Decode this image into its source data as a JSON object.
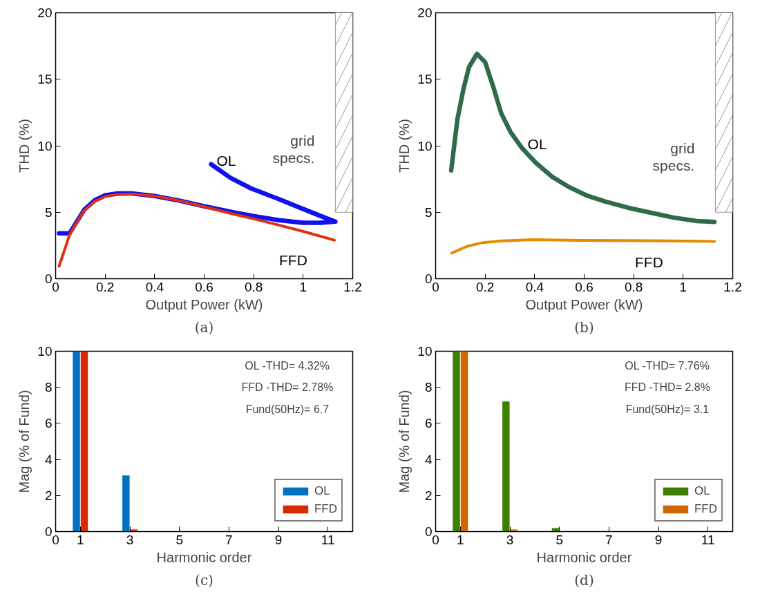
{
  "chart_data": [
    {
      "type": "line",
      "title": "(a)",
      "xlabel": "Output Power (kW)",
      "ylabel": "THD (%)",
      "xlim": [
        0,
        1.2
      ],
      "ylim": [
        0,
        20
      ],
      "xticks": [
        0,
        0.2,
        0.4,
        0.6,
        0.8,
        1,
        1.2
      ],
      "yticks": [
        0,
        5,
        10,
        15,
        20
      ],
      "series": [
        {
          "name": "OL",
          "color": "#1010f0",
          "x": [
            0.014,
            0.056,
            0.116,
            0.158,
            0.2,
            0.251,
            0.307,
            0.4,
            0.493,
            0.605,
            0.716,
            0.81,
            0.902,
            1.0,
            1.07,
            1.13,
            1.088,
            0.995,
            0.902,
            0.791,
            0.707,
            0.628
          ],
          "values": [
            3.41,
            3.41,
            5.2,
            5.9,
            6.27,
            6.42,
            6.42,
            6.22,
            5.9,
            5.43,
            5.0,
            4.68,
            4.4,
            4.21,
            4.21,
            4.3,
            4.59,
            5.28,
            5.99,
            6.78,
            7.58,
            8.61
          ]
        },
        {
          "name": "FFD",
          "color": "#e03010",
          "x": [
            0.014,
            0.056,
            0.112,
            0.158,
            0.2,
            0.251,
            0.307,
            0.4,
            0.493,
            0.605,
            0.716,
            0.81,
            0.902,
            1.0,
            1.126
          ],
          "values": [
            0.94,
            3.28,
            5.06,
            5.8,
            6.18,
            6.33,
            6.37,
            6.22,
            5.9,
            5.39,
            4.87,
            4.46,
            4.03,
            3.56,
            2.9
          ]
        }
      ],
      "bands": [
        {
          "axis": "x",
          "from": 1.13,
          "to": 1.2,
          "label": "grid specs."
        }
      ]
    },
    {
      "type": "line",
      "title": "(b)",
      "xlabel": "Output Power (kW)",
      "ylabel": "THD (%)",
      "xlim": [
        0,
        1.2
      ],
      "ylim": [
        0,
        20
      ],
      "xticks": [
        0,
        0.2,
        0.4,
        0.6,
        0.8,
        1,
        1.2
      ],
      "yticks": [
        0,
        5,
        10,
        15,
        20
      ],
      "series": [
        {
          "name": "OL",
          "color": "#2e6b4a",
          "x": [
            0.063,
            0.088,
            0.112,
            0.135,
            0.167,
            0.2,
            0.233,
            0.265,
            0.302,
            0.349,
            0.405,
            0.47,
            0.535,
            0.609,
            0.684,
            0.777,
            0.87,
            0.963,
            1.056,
            1.126
          ],
          "values": [
            8.15,
            11.99,
            14.23,
            15.92,
            16.91,
            16.29,
            14.42,
            12.45,
            11.05,
            9.83,
            8.71,
            7.68,
            6.93,
            6.27,
            5.81,
            5.34,
            4.96,
            4.59,
            4.34,
            4.27
          ]
        },
        {
          "name": "FFD",
          "color": "#e68a00",
          "x": [
            0.065,
            0.126,
            0.191,
            0.265,
            0.405,
            0.591,
            0.777,
            0.963,
            1.126
          ],
          "values": [
            1.93,
            2.43,
            2.72,
            2.85,
            2.94,
            2.88,
            2.87,
            2.85,
            2.81
          ]
        }
      ],
      "bands": [
        {
          "axis": "x",
          "from": 1.13,
          "to": 1.2,
          "label": "grid specs."
        }
      ]
    },
    {
      "type": "bar",
      "title": "(c)",
      "xlabel": "Harmonic order",
      "ylabel": "Mag (% of Fund)",
      "xlim": [
        0,
        12
      ],
      "ylim": [
        0,
        10
      ],
      "xticks": [
        0,
        1,
        3,
        5,
        7,
        9,
        11
      ],
      "yticks": [
        0,
        2,
        4,
        6,
        8,
        10
      ],
      "legend": "bottom right",
      "x": [
        1,
        3,
        5,
        7,
        9,
        11
      ],
      "series": [
        {
          "name": "OL",
          "color": "#0070c0",
          "values": [
            10,
            3.1,
            0,
            0,
            0,
            0
          ]
        },
        {
          "name": "FFD",
          "color": "#d92b00",
          "values": [
            10,
            0.11,
            0,
            0,
            0,
            0
          ]
        }
      ],
      "annotations": [
        "OL -THD= 4.32%",
        "FFD -THD= 2.78%",
        "Fund(50Hz)= 6.7"
      ]
    },
    {
      "type": "bar",
      "title": "(d)",
      "xlabel": "Harmonic order",
      "ylabel": "Mag (% of Fund)",
      "xlim": [
        0,
        12
      ],
      "ylim": [
        0,
        10
      ],
      "xticks": [
        0,
        1,
        3,
        5,
        7,
        9,
        11
      ],
      "yticks": [
        0,
        2,
        4,
        6,
        8,
        10
      ],
      "legend": "bottom right",
      "x": [
        1,
        3,
        5,
        7,
        9,
        11
      ],
      "series": [
        {
          "name": "OL",
          "color": "#3f7f00",
          "values": [
            10,
            7.21,
            0.18,
            0,
            0,
            0
          ]
        },
        {
          "name": "FFD",
          "color": "#d06800",
          "values": [
            10,
            0.11,
            0,
            0,
            0,
            0
          ]
        }
      ],
      "annotations": [
        "OL -THD= 7.76%",
        "FFD -THD= 2.8%",
        "Fund(50Hz)= 3.1"
      ]
    }
  ]
}
